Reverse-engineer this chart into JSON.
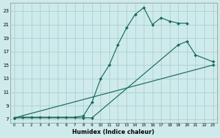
{
  "xlabel": "Humidex (Indice chaleur)",
  "background_color": "#ceeaea",
  "grid_color": "#aacfcf",
  "line_color": "#1a6b5a",
  "xlim": [
    -0.5,
    23.5
  ],
  "ylim": [
    6.5,
    24.2
  ],
  "yticks": [
    7,
    9,
    11,
    13,
    15,
    17,
    19,
    21,
    23
  ],
  "xticks": [
    0,
    1,
    2,
    3,
    4,
    5,
    6,
    7,
    8,
    9,
    10,
    11,
    12,
    13,
    14,
    15,
    16,
    17,
    18,
    19,
    20,
    21,
    22,
    23
  ],
  "line1_x": [
    0,
    1,
    2,
    3,
    4,
    5,
    6,
    7,
    8,
    9,
    10,
    11,
    12,
    13,
    14,
    15,
    16,
    17,
    18,
    19,
    20
  ],
  "line1_y": [
    7.2,
    7.3,
    7.3,
    7.3,
    7.3,
    7.3,
    7.3,
    7.3,
    7.5,
    9.5,
    13.0,
    15.0,
    18.0,
    20.5,
    22.5,
    23.5,
    21.0,
    22.0,
    21.5,
    21.2,
    21.2
  ],
  "line2_x": [
    0,
    8,
    9,
    19,
    20,
    21,
    23
  ],
  "line2_y": [
    7.2,
    7.2,
    7.2,
    18.0,
    18.5,
    16.5,
    15.5
  ],
  "line3_x": [
    0,
    23
  ],
  "line3_y": [
    7.2,
    15.0
  ]
}
